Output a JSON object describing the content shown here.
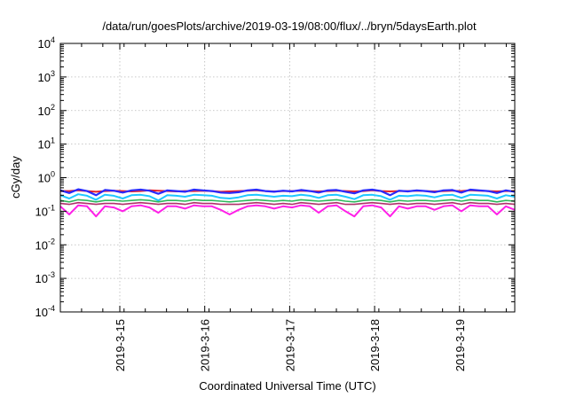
{
  "chart_data": {
    "type": "line",
    "title": "/data/run/goesPlots/archive/2019-03-19/08:00/flux/../bryn/5daysEarth.plot",
    "xlabel": "Coordinated Universal Time (UTC)",
    "ylabel": "cGy/day",
    "y_scale": "log",
    "ylim": [
      0.0001,
      10000
    ],
    "xlim": [
      0.0,
      5.35
    ],
    "x_tick_positions": [
      0.7,
      1.7,
      2.7,
      3.7,
      4.7
    ],
    "x_tick_labels": [
      "2019-3-15",
      "2019-3-16",
      "2019-3-17",
      "2019-3-18",
      "2019-3-19"
    ],
    "y_ticks": [
      {
        "value": 0.0001,
        "base": "10",
        "exp": "-4"
      },
      {
        "value": 0.001,
        "base": "10",
        "exp": "-3"
      },
      {
        "value": 0.01,
        "base": "10",
        "exp": "-2"
      },
      {
        "value": 0.1,
        "base": "10",
        "exp": "-1"
      },
      {
        "value": 1,
        "base": "10",
        "exp": "0"
      },
      {
        "value": 10,
        "base": "10",
        "exp": "1"
      },
      {
        "value": 100,
        "base": "10",
        "exp": "2"
      },
      {
        "value": 1000,
        "base": "10",
        "exp": "3"
      },
      {
        "value": 10000,
        "base": "10",
        "exp": "4"
      }
    ],
    "grid": true,
    "legend": "none",
    "series": [
      {
        "color": "#e8202a",
        "width": 2.0,
        "values": [
          0.4,
          0.4,
          0.42,
          0.4,
          0.38,
          0.4,
          0.41,
          0.4,
          0.39,
          0.4,
          0.42,
          0.41,
          0.4,
          0.39,
          0.4,
          0.4,
          0.41,
          0.4,
          0.38,
          0.39,
          0.4,
          0.41,
          0.42,
          0.4,
          0.39,
          0.4,
          0.4,
          0.41,
          0.4,
          0.39,
          0.4,
          0.41,
          0.4,
          0.39,
          0.4,
          0.42,
          0.4,
          0.39,
          0.4,
          0.4,
          0.41,
          0.4,
          0.39,
          0.4,
          0.41,
          0.4,
          0.42,
          0.41,
          0.4,
          0.39,
          0.4,
          0.4
        ]
      },
      {
        "color": "#2a2aff",
        "width": 2.2,
        "values": [
          0.42,
          0.35,
          0.45,
          0.4,
          0.3,
          0.43,
          0.41,
          0.36,
          0.42,
          0.44,
          0.41,
          0.33,
          0.42,
          0.4,
          0.38,
          0.44,
          0.42,
          0.4,
          0.36,
          0.35,
          0.37,
          0.42,
          0.44,
          0.4,
          0.38,
          0.41,
          0.39,
          0.43,
          0.4,
          0.36,
          0.42,
          0.43,
          0.38,
          0.34,
          0.42,
          0.44,
          0.4,
          0.3,
          0.41,
          0.39,
          0.42,
          0.4,
          0.37,
          0.42,
          0.43,
          0.36,
          0.44,
          0.42,
          0.4,
          0.35,
          0.42,
          0.38
        ]
      },
      {
        "color": "#1ec8ff",
        "width": 2.0,
        "values": [
          0.3,
          0.24,
          0.32,
          0.29,
          0.22,
          0.31,
          0.29,
          0.24,
          0.3,
          0.31,
          0.28,
          0.21,
          0.3,
          0.29,
          0.27,
          0.31,
          0.3,
          0.29,
          0.25,
          0.24,
          0.26,
          0.3,
          0.31,
          0.29,
          0.27,
          0.29,
          0.28,
          0.31,
          0.29,
          0.25,
          0.3,
          0.31,
          0.27,
          0.23,
          0.3,
          0.31,
          0.28,
          0.22,
          0.29,
          0.28,
          0.3,
          0.29,
          0.26,
          0.3,
          0.31,
          0.25,
          0.31,
          0.3,
          0.29,
          0.24,
          0.3,
          0.27
        ]
      },
      {
        "color": "#2eb85c",
        "width": 1.6,
        "values": [
          0.21,
          0.19,
          0.22,
          0.21,
          0.19,
          0.21,
          0.21,
          0.2,
          0.21,
          0.22,
          0.21,
          0.19,
          0.21,
          0.21,
          0.2,
          0.22,
          0.21,
          0.21,
          0.2,
          0.19,
          0.2,
          0.21,
          0.22,
          0.21,
          0.2,
          0.21,
          0.2,
          0.22,
          0.21,
          0.2,
          0.21,
          0.22,
          0.2,
          0.19,
          0.21,
          0.22,
          0.21,
          0.19,
          0.21,
          0.2,
          0.21,
          0.21,
          0.2,
          0.21,
          0.22,
          0.2,
          0.22,
          0.21,
          0.21,
          0.19,
          0.21,
          0.2
        ]
      },
      {
        "color": "#b0306a",
        "width": 1.6,
        "values": [
          0.17,
          0.16,
          0.18,
          0.17,
          0.16,
          0.17,
          0.17,
          0.16,
          0.17,
          0.18,
          0.17,
          0.16,
          0.17,
          0.17,
          0.16,
          0.18,
          0.17,
          0.17,
          0.16,
          0.16,
          0.16,
          0.17,
          0.18,
          0.17,
          0.16,
          0.17,
          0.16,
          0.18,
          0.17,
          0.16,
          0.17,
          0.18,
          0.16,
          0.16,
          0.17,
          0.18,
          0.17,
          0.16,
          0.17,
          0.16,
          0.17,
          0.17,
          0.16,
          0.17,
          0.18,
          0.16,
          0.18,
          0.17,
          0.17,
          0.16,
          0.17,
          0.16
        ]
      },
      {
        "color": "#ff20e8",
        "width": 2.0,
        "values": [
          0.14,
          0.08,
          0.15,
          0.14,
          0.07,
          0.14,
          0.13,
          0.1,
          0.14,
          0.15,
          0.13,
          0.09,
          0.14,
          0.14,
          0.12,
          0.15,
          0.14,
          0.14,
          0.11,
          0.08,
          0.11,
          0.14,
          0.15,
          0.14,
          0.12,
          0.14,
          0.13,
          0.15,
          0.14,
          0.09,
          0.14,
          0.15,
          0.1,
          0.07,
          0.14,
          0.15,
          0.13,
          0.07,
          0.14,
          0.12,
          0.14,
          0.14,
          0.11,
          0.14,
          0.15,
          0.1,
          0.15,
          0.14,
          0.14,
          0.08,
          0.14,
          0.11
        ]
      }
    ]
  }
}
